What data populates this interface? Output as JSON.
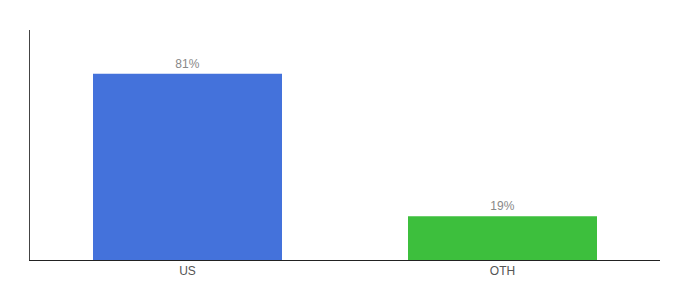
{
  "chart_data": {
    "type": "bar",
    "categories": [
      "US",
      "OTH"
    ],
    "values": [
      81,
      19
    ],
    "value_labels": [
      "81%",
      "19%"
    ],
    "colors": [
      "#4472db",
      "#3dbf3d"
    ],
    "ylim": [
      0,
      100
    ],
    "data_labels": true,
    "tick_labels": "x",
    "grid": false
  }
}
